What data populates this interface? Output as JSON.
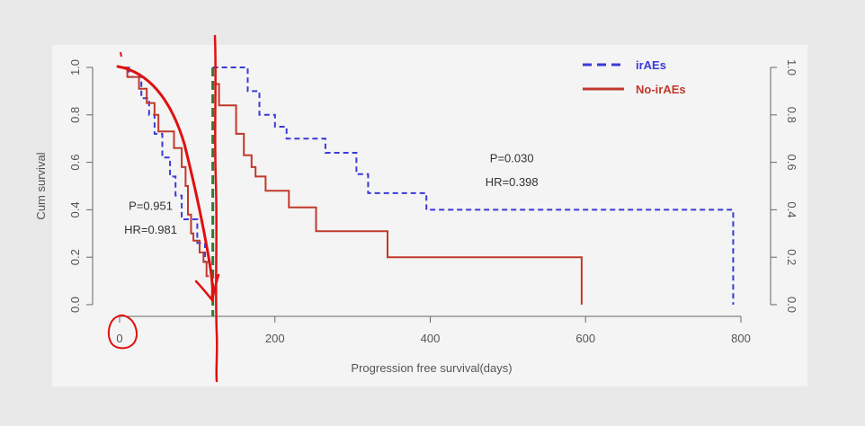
{
  "chart_data": {
    "type": "line",
    "step": true,
    "xlabel": "Progression free survival(days)",
    "ylabel": "Cum survival",
    "xlim": [
      0,
      800
    ],
    "ylim": [
      0,
      1.0
    ],
    "x_ticks": [
      "0",
      "200",
      "400",
      "600",
      "800"
    ],
    "x_tick_values": [
      0,
      200,
      400,
      600,
      800
    ],
    "y_ticks": [
      "0.0",
      "0.2",
      "0.4",
      "0.6",
      "0.8",
      "1.0"
    ],
    "y_tick_values": [
      0,
      0.2,
      0.4,
      0.6,
      0.8,
      1.0
    ],
    "grid": false,
    "legend_position": "top-right",
    "series": [
      {
        "name": "irAEs",
        "style": "dashed",
        "color": "#3a3ad6",
        "segment": "before-landmark",
        "points": [
          [
            0,
            1.0
          ],
          [
            12,
            1.0
          ],
          [
            12,
            0.96
          ],
          [
            28,
            0.96
          ],
          [
            28,
            0.87
          ],
          [
            38,
            0.87
          ],
          [
            38,
            0.8
          ],
          [
            45,
            0.8
          ],
          [
            45,
            0.72
          ],
          [
            55,
            0.72
          ],
          [
            55,
            0.62
          ],
          [
            65,
            0.62
          ],
          [
            65,
            0.54
          ],
          [
            72,
            0.54
          ],
          [
            72,
            0.46
          ],
          [
            80,
            0.46
          ],
          [
            80,
            0.36
          ],
          [
            100,
            0.36
          ],
          [
            100,
            0.26
          ],
          [
            110,
            0.26
          ],
          [
            110,
            0.18
          ],
          [
            120,
            0.18
          ]
        ]
      },
      {
        "name": "No-irAEs",
        "style": "solid",
        "color": "#c0392b",
        "segment": "before-landmark",
        "points": [
          [
            0,
            1.0
          ],
          [
            10,
            1.0
          ],
          [
            10,
            0.96
          ],
          [
            25,
            0.96
          ],
          [
            25,
            0.91
          ],
          [
            35,
            0.91
          ],
          [
            35,
            0.85
          ],
          [
            45,
            0.85
          ],
          [
            45,
            0.8
          ],
          [
            50,
            0.8
          ],
          [
            50,
            0.73
          ],
          [
            70,
            0.73
          ],
          [
            70,
            0.66
          ],
          [
            80,
            0.66
          ],
          [
            80,
            0.58
          ],
          [
            85,
            0.58
          ],
          [
            85,
            0.5
          ],
          [
            88,
            0.5
          ],
          [
            88,
            0.38
          ],
          [
            92,
            0.38
          ],
          [
            92,
            0.3
          ],
          [
            95,
            0.3
          ],
          [
            95,
            0.27
          ],
          [
            103,
            0.27
          ],
          [
            103,
            0.22
          ],
          [
            108,
            0.22
          ],
          [
            108,
            0.18
          ],
          [
            112,
            0.18
          ],
          [
            112,
            0.12
          ],
          [
            115,
            0.12
          ]
        ]
      },
      {
        "name": "irAEs",
        "style": "dashed",
        "color": "#3a3ad6",
        "segment": "after-landmark",
        "points": [
          [
            120,
            1.0
          ],
          [
            165,
            1.0
          ],
          [
            165,
            0.9
          ],
          [
            180,
            0.9
          ],
          [
            180,
            0.8
          ],
          [
            200,
            0.8
          ],
          [
            200,
            0.75
          ],
          [
            215,
            0.75
          ],
          [
            215,
            0.7
          ],
          [
            265,
            0.7
          ],
          [
            265,
            0.64
          ],
          [
            305,
            0.64
          ],
          [
            305,
            0.55
          ],
          [
            320,
            0.55
          ],
          [
            320,
            0.47
          ],
          [
            395,
            0.47
          ],
          [
            395,
            0.4
          ],
          [
            790,
            0.4
          ],
          [
            790,
            0.0
          ]
        ]
      },
      {
        "name": "No-irAEs",
        "style": "solid",
        "color": "#c0392b",
        "segment": "after-landmark",
        "points": [
          [
            120,
            0.93
          ],
          [
            128,
            0.93
          ],
          [
            128,
            0.84
          ],
          [
            150,
            0.84
          ],
          [
            150,
            0.72
          ],
          [
            160,
            0.72
          ],
          [
            160,
            0.63
          ],
          [
            170,
            0.63
          ],
          [
            170,
            0.58
          ],
          [
            175,
            0.58
          ],
          [
            175,
            0.54
          ],
          [
            188,
            0.54
          ],
          [
            188,
            0.48
          ],
          [
            218,
            0.48
          ],
          [
            218,
            0.41
          ],
          [
            253,
            0.41
          ],
          [
            253,
            0.31
          ],
          [
            345,
            0.31
          ],
          [
            345,
            0.2
          ],
          [
            595,
            0.2
          ],
          [
            595,
            0.0
          ]
        ]
      }
    ],
    "landmark_x": 120,
    "annotations": [
      {
        "text": "P=0.951",
        "x": 40,
        "y": 0.4
      },
      {
        "text": "HR=0.981",
        "x": 40,
        "y": 0.3
      },
      {
        "text": "P=0.030",
        "x": 505,
        "y": 0.6
      },
      {
        "text": "HR=0.398",
        "x": 505,
        "y": 0.5
      }
    ],
    "legend": [
      {
        "label": "irAEs",
        "color": "#3a3ad6",
        "style": "dashed"
      },
      {
        "label": "No-irAEs",
        "color": "#c0392b",
        "style": "solid"
      }
    ],
    "colors": {
      "landmark_line": "#2e7d32",
      "ink_marks": "#e01010"
    }
  }
}
